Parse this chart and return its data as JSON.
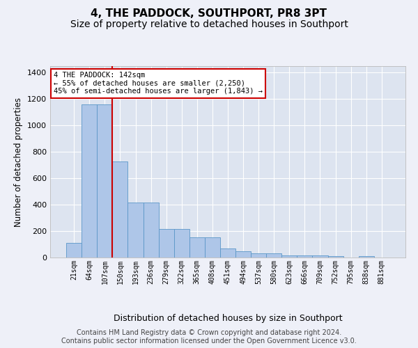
{
  "title": "4, THE PADDOCK, SOUTHPORT, PR8 3PT",
  "subtitle": "Size of property relative to detached houses in Southport",
  "xlabel": "Distribution of detached houses by size in Southport",
  "ylabel": "Number of detached properties",
  "categories": [
    "21sqm",
    "64sqm",
    "107sqm",
    "150sqm",
    "193sqm",
    "236sqm",
    "279sqm",
    "322sqm",
    "365sqm",
    "408sqm",
    "451sqm",
    "494sqm",
    "537sqm",
    "580sqm",
    "623sqm",
    "666sqm",
    "709sqm",
    "752sqm",
    "795sqm",
    "838sqm",
    "881sqm"
  ],
  "values": [
    110,
    1160,
    1160,
    730,
    415,
    415,
    215,
    215,
    155,
    155,
    70,
    50,
    30,
    30,
    18,
    15,
    15,
    12,
    0,
    12,
    0
  ],
  "bar_color": "#aec6e8",
  "bar_edge_color": "#5a96c8",
  "vline_x_idx": 2,
  "vline_color": "#cc0000",
  "annotation_text": "4 THE PADDOCK: 142sqm\n← 55% of detached houses are smaller (2,250)\n45% of semi-detached houses are larger (1,843) →",
  "annotation_box_color": "#ffffff",
  "annotation_box_edge": "#cc0000",
  "ylim": [
    0,
    1450
  ],
  "yticks": [
    0,
    200,
    400,
    600,
    800,
    1000,
    1200,
    1400
  ],
  "bg_color": "#eef0f8",
  "plot_bg_color": "#dde4f0",
  "footer": "Contains HM Land Registry data © Crown copyright and database right 2024.\nContains public sector information licensed under the Open Government Licence v3.0.",
  "title_fontsize": 11,
  "subtitle_fontsize": 10,
  "xlabel_fontsize": 9,
  "ylabel_fontsize": 8.5,
  "footer_fontsize": 7,
  "tick_fontsize": 8,
  "xtick_fontsize": 7
}
